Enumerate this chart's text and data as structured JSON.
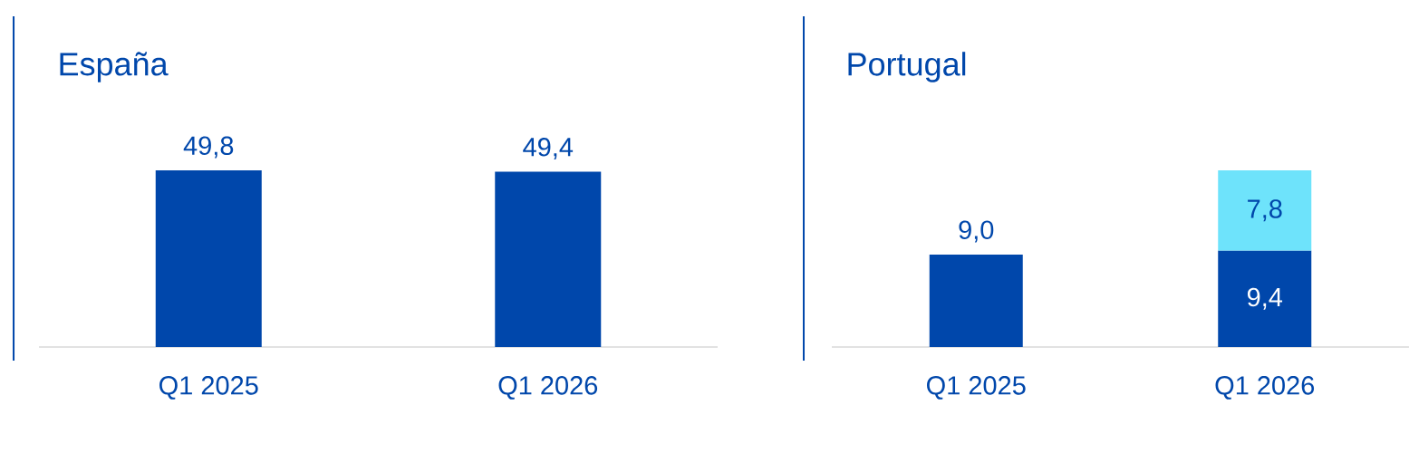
{
  "chart_data": [
    {
      "type": "bar",
      "title": "España",
      "categories": [
        "Q1 2025",
        "Q1 2026"
      ],
      "series": [
        {
          "color": "#0047ab",
          "values": [
            49.8,
            49.4
          ],
          "value_labels": [
            "49,8",
            "49,4"
          ]
        }
      ]
    },
    {
      "type": "bar",
      "title": "Portugal",
      "categories": [
        "Q1 2025",
        "Q1 2026"
      ],
      "stacked": true,
      "series": [
        {
          "color": "#0047ab",
          "values": [
            9.0,
            9.4
          ],
          "value_labels": [
            "9,0",
            "9,4"
          ]
        },
        {
          "color": "#6ee3fb",
          "values": [
            null,
            7.8
          ],
          "value_labels": [
            null,
            "7,8"
          ]
        }
      ]
    }
  ]
}
